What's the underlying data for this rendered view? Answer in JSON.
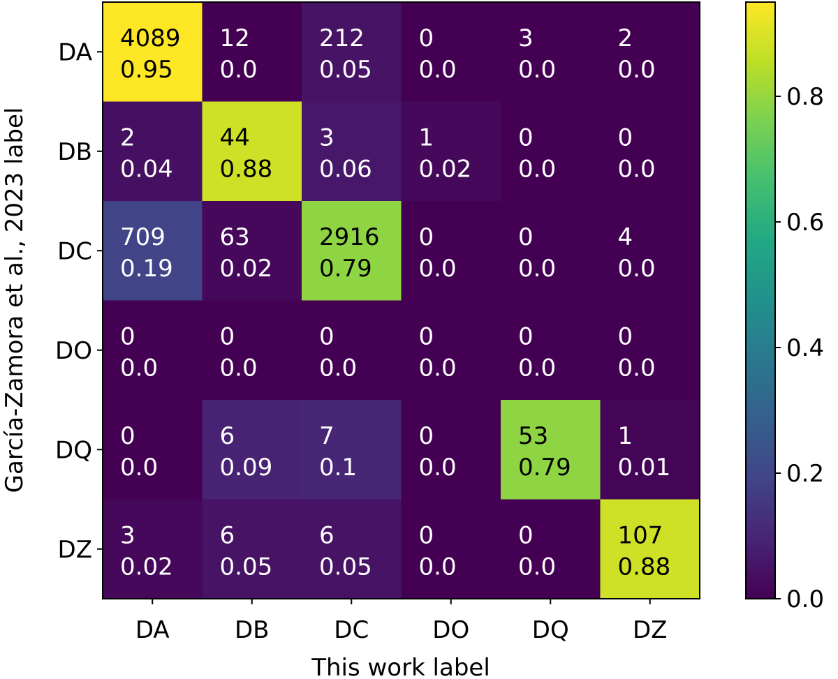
{
  "chart_data": {
    "type": "heatmap",
    "title": "",
    "xlabel": "This work label",
    "ylabel": "García-Zamora et al., 2023 label",
    "x_categories": [
      "DA",
      "DB",
      "DC",
      "DO",
      "DQ",
      "DZ"
    ],
    "y_categories": [
      "DA",
      "DB",
      "DC",
      "DO",
      "DQ",
      "DZ"
    ],
    "counts": [
      [
        4089,
        12,
        212,
        0,
        3,
        2
      ],
      [
        2,
        44,
        3,
        1,
        0,
        0
      ],
      [
        709,
        63,
        2916,
        0,
        0,
        4
      ],
      [
        0,
        0,
        0,
        0,
        0,
        0
      ],
      [
        0,
        6,
        7,
        0,
        53,
        1
      ],
      [
        3,
        6,
        6,
        0,
        0,
        107
      ]
    ],
    "fractions": [
      [
        "0.95",
        "0.0",
        "0.05",
        "0.0",
        "0.0",
        "0.0"
      ],
      [
        "0.04",
        "0.88",
        "0.06",
        "0.02",
        "0.0",
        "0.0"
      ],
      [
        "0.19",
        "0.02",
        "0.79",
        "0.0",
        "0.0",
        "0.0"
      ],
      [
        "0.0",
        "0.0",
        "0.0",
        "0.0",
        "0.0",
        "0.0"
      ],
      [
        "0.0",
        "0.09",
        "0.1",
        "0.0",
        "0.79",
        "0.01"
      ],
      [
        "0.02",
        "0.05",
        "0.05",
        "0.0",
        "0.0",
        "0.88"
      ]
    ],
    "colormap": "viridis",
    "colorbar": {
      "range": [
        0.0,
        0.95
      ],
      "ticks": [
        0.0,
        0.2,
        0.4,
        0.6,
        0.8
      ],
      "tick_labels": [
        "0.0",
        "0.2",
        "0.4",
        "0.6",
        "0.8"
      ]
    }
  }
}
